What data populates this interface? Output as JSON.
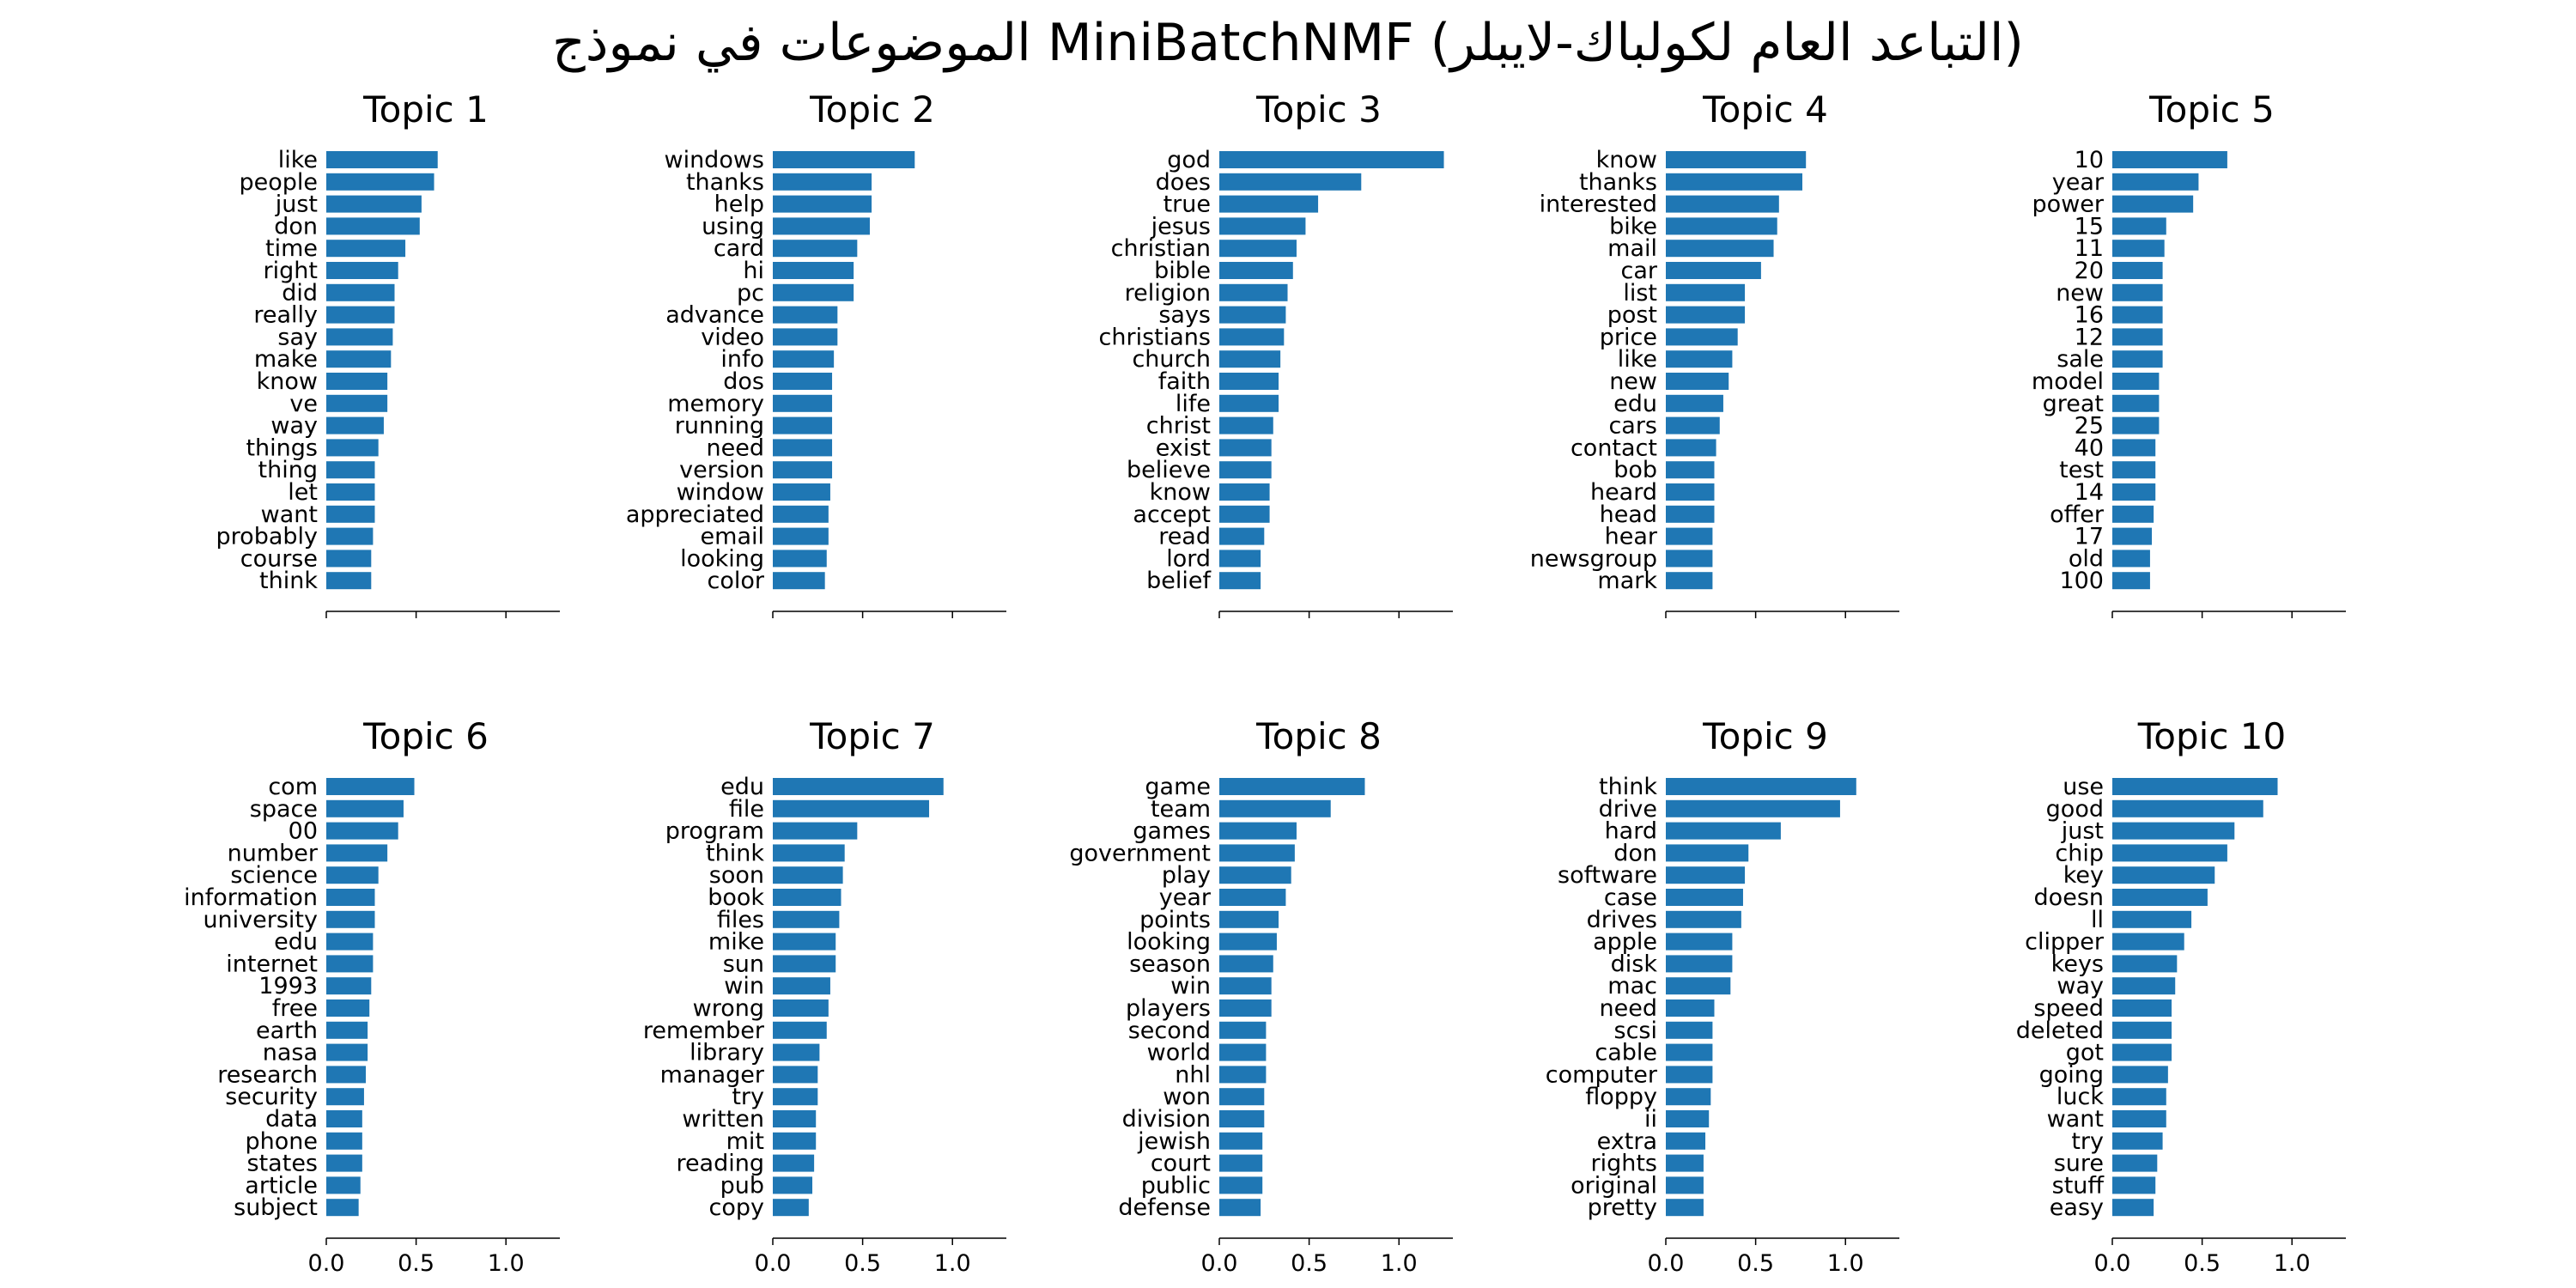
{
  "chart_data": {
    "suptitle": "الموضوعات في نموذج MiniBatchNMF (التباعد العام لكولباك-لايبلر)",
    "type": "bar",
    "orientation": "horizontal",
    "bar_color": "#1f77b4",
    "xlim": [
      0,
      1.3
    ],
    "xticks": [
      0.0,
      0.5,
      1.0
    ],
    "xtick_labels": [
      "0.0",
      "0.5",
      "1.0"
    ],
    "panels": [
      {
        "title": "Topic 1",
        "words": [
          "like",
          "people",
          "just",
          "don",
          "time",
          "right",
          "did",
          "really",
          "say",
          "make",
          "know",
          "ve",
          "way",
          "things",
          "thing",
          "let",
          "want",
          "probably",
          "course",
          "think"
        ],
        "values": [
          0.62,
          0.6,
          0.53,
          0.52,
          0.44,
          0.4,
          0.38,
          0.38,
          0.37,
          0.36,
          0.34,
          0.34,
          0.32,
          0.29,
          0.27,
          0.27,
          0.27,
          0.26,
          0.25,
          0.25
        ]
      },
      {
        "title": "Topic 2",
        "words": [
          "windows",
          "thanks",
          "help",
          "using",
          "card",
          "hi",
          "pc",
          "advance",
          "video",
          "info",
          "dos",
          "memory",
          "running",
          "need",
          "version",
          "window",
          "appreciated",
          "email",
          "looking",
          "color"
        ],
        "values": [
          0.79,
          0.55,
          0.55,
          0.54,
          0.47,
          0.45,
          0.45,
          0.36,
          0.36,
          0.34,
          0.33,
          0.33,
          0.33,
          0.33,
          0.33,
          0.32,
          0.31,
          0.31,
          0.3,
          0.29
        ]
      },
      {
        "title": "Topic 3",
        "words": [
          "god",
          "does",
          "true",
          "jesus",
          "christian",
          "bible",
          "religion",
          "says",
          "christians",
          "church",
          "faith",
          "life",
          "christ",
          "exist",
          "believe",
          "know",
          "accept",
          "read",
          "lord",
          "belief"
        ],
        "values": [
          1.25,
          0.79,
          0.55,
          0.48,
          0.43,
          0.41,
          0.38,
          0.37,
          0.36,
          0.34,
          0.33,
          0.33,
          0.3,
          0.29,
          0.29,
          0.28,
          0.28,
          0.25,
          0.23,
          0.23
        ]
      },
      {
        "title": "Topic 4",
        "words": [
          "know",
          "thanks",
          "interested",
          "bike",
          "mail",
          "car",
          "list",
          "post",
          "price",
          "like",
          "new",
          "edu",
          "cars",
          "contact",
          "bob",
          "heard",
          "head",
          "hear",
          "newsgroup",
          "mark"
        ],
        "values": [
          0.78,
          0.76,
          0.63,
          0.62,
          0.6,
          0.53,
          0.44,
          0.44,
          0.4,
          0.37,
          0.35,
          0.32,
          0.3,
          0.28,
          0.27,
          0.27,
          0.27,
          0.26,
          0.26,
          0.26
        ]
      },
      {
        "title": "Topic 5",
        "words": [
          "10",
          "year",
          "power",
          "15",
          "11",
          "20",
          "new",
          "16",
          "12",
          "sale",
          "model",
          "great",
          "25",
          "40",
          "test",
          "14",
          "offer",
          "17",
          "old",
          "100"
        ],
        "values": [
          0.64,
          0.48,
          0.45,
          0.3,
          0.29,
          0.28,
          0.28,
          0.28,
          0.28,
          0.28,
          0.26,
          0.26,
          0.26,
          0.24,
          0.24,
          0.24,
          0.23,
          0.22,
          0.21,
          0.21
        ]
      },
      {
        "title": "Topic 6",
        "words": [
          "com",
          "space",
          "00",
          "number",
          "science",
          "information",
          "university",
          "edu",
          "internet",
          "1993",
          "free",
          "earth",
          "nasa",
          "research",
          "security",
          "data",
          "phone",
          "states",
          "article",
          "subject"
        ],
        "values": [
          0.49,
          0.43,
          0.4,
          0.34,
          0.29,
          0.27,
          0.27,
          0.26,
          0.26,
          0.25,
          0.24,
          0.23,
          0.23,
          0.22,
          0.21,
          0.2,
          0.2,
          0.2,
          0.19,
          0.18
        ]
      },
      {
        "title": "Topic 7",
        "words": [
          "edu",
          "file",
          "program",
          "think",
          "soon",
          "book",
          "files",
          "mike",
          "sun",
          "win",
          "wrong",
          "remember",
          "library",
          "manager",
          "try",
          "written",
          "mit",
          "reading",
          "pub",
          "copy"
        ],
        "values": [
          0.95,
          0.87,
          0.47,
          0.4,
          0.39,
          0.38,
          0.37,
          0.35,
          0.35,
          0.32,
          0.31,
          0.3,
          0.26,
          0.25,
          0.25,
          0.24,
          0.24,
          0.23,
          0.22,
          0.2
        ]
      },
      {
        "title": "Topic 8",
        "words": [
          "game",
          "team",
          "games",
          "government",
          "play",
          "year",
          "points",
          "looking",
          "season",
          "win",
          "players",
          "second",
          "world",
          "nhl",
          "won",
          "division",
          "jewish",
          "court",
          "public",
          "defense"
        ],
        "values": [
          0.81,
          0.62,
          0.43,
          0.42,
          0.4,
          0.37,
          0.33,
          0.32,
          0.3,
          0.29,
          0.29,
          0.26,
          0.26,
          0.26,
          0.25,
          0.25,
          0.24,
          0.24,
          0.24,
          0.23
        ]
      },
      {
        "title": "Topic 9",
        "words": [
          "think",
          "drive",
          "hard",
          "don",
          "software",
          "case",
          "drives",
          "apple",
          "disk",
          "mac",
          "need",
          "scsi",
          "cable",
          "computer",
          "floppy",
          "ii",
          "extra",
          "rights",
          "original",
          "pretty"
        ],
        "values": [
          1.06,
          0.97,
          0.64,
          0.46,
          0.44,
          0.43,
          0.42,
          0.37,
          0.37,
          0.36,
          0.27,
          0.26,
          0.26,
          0.26,
          0.25,
          0.24,
          0.22,
          0.21,
          0.21,
          0.21
        ]
      },
      {
        "title": "Topic 10",
        "words": [
          "use",
          "good",
          "just",
          "chip",
          "key",
          "doesn",
          "ll",
          "clipper",
          "keys",
          "way",
          "speed",
          "deleted",
          "got",
          "going",
          "luck",
          "want",
          "try",
          "sure",
          "stuff",
          "easy"
        ],
        "values": [
          0.92,
          0.84,
          0.68,
          0.64,
          0.57,
          0.53,
          0.44,
          0.4,
          0.36,
          0.35,
          0.33,
          0.33,
          0.33,
          0.31,
          0.3,
          0.3,
          0.28,
          0.25,
          0.24,
          0.23
        ]
      }
    ]
  }
}
